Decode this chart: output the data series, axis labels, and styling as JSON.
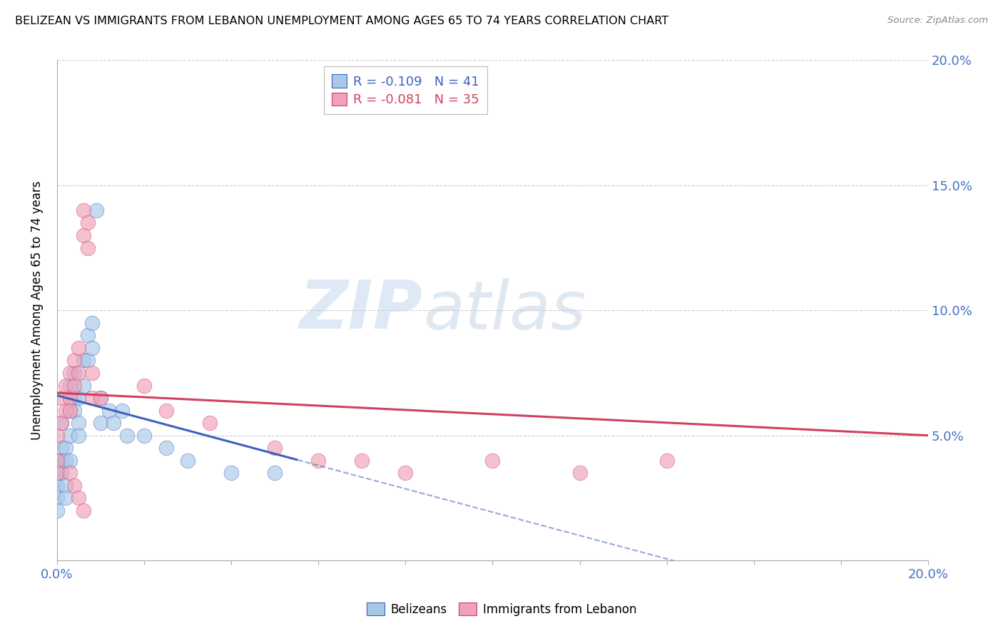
{
  "title": "BELIZEAN VS IMMIGRANTS FROM LEBANON UNEMPLOYMENT AMONG AGES 65 TO 74 YEARS CORRELATION CHART",
  "source": "Source: ZipAtlas.com",
  "ylabel": "Unemployment Among Ages 65 to 74 years",
  "xlim": [
    0.0,
    0.2
  ],
  "ylim": [
    0.0,
    0.2
  ],
  "color_blue": "#a8c8e8",
  "color_pink": "#f0a0b8",
  "trend_blue": "#4060c0",
  "trend_pink": "#d04060",
  "legend_r1": "-0.109",
  "legend_n1": "41",
  "legend_r2": "-0.081",
  "legend_n2": "35",
  "legend_label1": "Belizeans",
  "legend_label2": "Immigrants from Lebanon",
  "watermark_zip": "ZIP",
  "watermark_atlas": "atlas",
  "blue_x": [
    0.0,
    0.0,
    0.0,
    0.0,
    0.0,
    0.001,
    0.001,
    0.001,
    0.001,
    0.002,
    0.002,
    0.002,
    0.002,
    0.003,
    0.003,
    0.003,
    0.003,
    0.004,
    0.004,
    0.004,
    0.005,
    0.005,
    0.005,
    0.006,
    0.006,
    0.007,
    0.007,
    0.008,
    0.008,
    0.009,
    0.01,
    0.01,
    0.012,
    0.013,
    0.015,
    0.016,
    0.02,
    0.025,
    0.03,
    0.04,
    0.05
  ],
  "blue_y": [
    0.04,
    0.035,
    0.03,
    0.025,
    0.02,
    0.055,
    0.045,
    0.04,
    0.035,
    0.045,
    0.04,
    0.03,
    0.025,
    0.07,
    0.06,
    0.05,
    0.04,
    0.075,
    0.065,
    0.06,
    0.065,
    0.055,
    0.05,
    0.08,
    0.07,
    0.09,
    0.08,
    0.095,
    0.085,
    0.14,
    0.065,
    0.055,
    0.06,
    0.055,
    0.06,
    0.05,
    0.05,
    0.045,
    0.04,
    0.035,
    0.035
  ],
  "pink_x": [
    0.0,
    0.0,
    0.0,
    0.001,
    0.001,
    0.002,
    0.002,
    0.003,
    0.003,
    0.003,
    0.004,
    0.004,
    0.005,
    0.005,
    0.006,
    0.006,
    0.007,
    0.007,
    0.008,
    0.008,
    0.01,
    0.02,
    0.025,
    0.035,
    0.05,
    0.06,
    0.07,
    0.08,
    0.1,
    0.12,
    0.14,
    0.003,
    0.004,
    0.005,
    0.006
  ],
  "pink_y": [
    0.05,
    0.04,
    0.035,
    0.065,
    0.055,
    0.07,
    0.06,
    0.075,
    0.065,
    0.06,
    0.08,
    0.07,
    0.085,
    0.075,
    0.14,
    0.13,
    0.135,
    0.125,
    0.075,
    0.065,
    0.065,
    0.07,
    0.06,
    0.055,
    0.045,
    0.04,
    0.04,
    0.035,
    0.04,
    0.035,
    0.04,
    0.035,
    0.03,
    0.025,
    0.02
  ],
  "blue_trend_x0": 0.0,
  "blue_trend_y0": 0.066,
  "blue_trend_x1": 0.06,
  "blue_trend_y1": 0.038,
  "pink_trend_x0": 0.0,
  "pink_trend_y0": 0.067,
  "pink_trend_x1": 0.2,
  "pink_trend_y1": 0.05
}
